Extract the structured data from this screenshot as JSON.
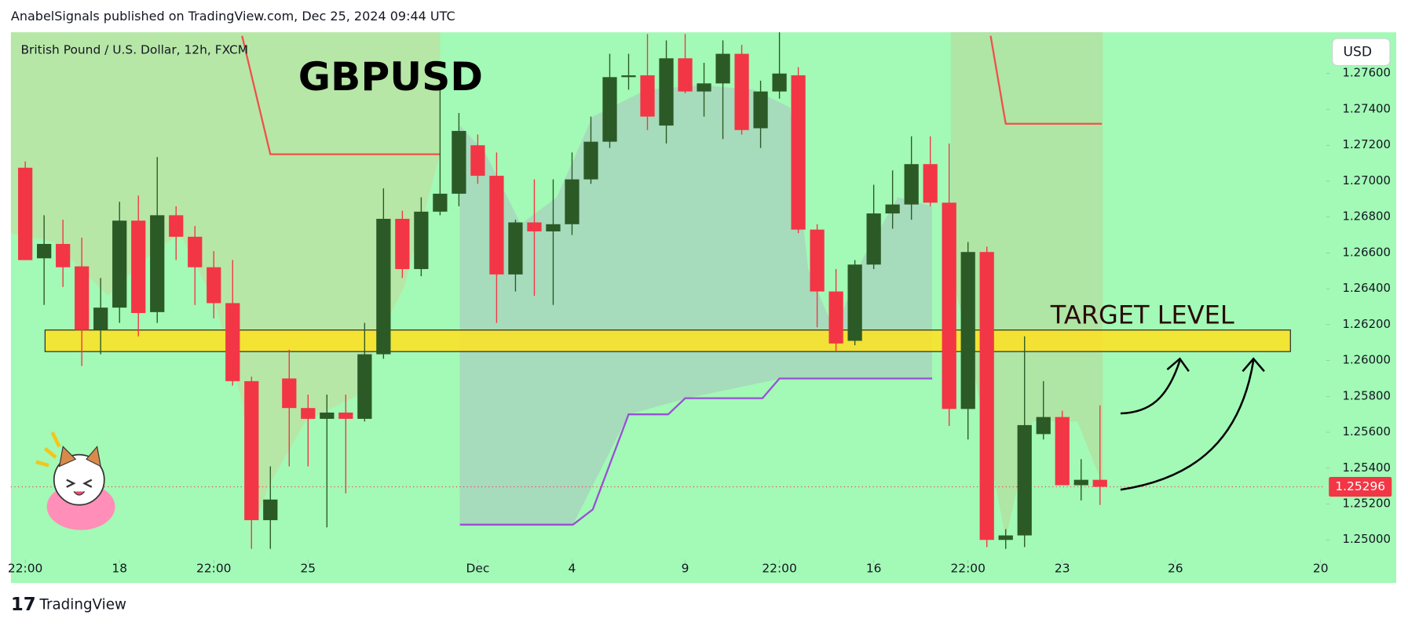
{
  "chart_data": {
    "type": "candlestick",
    "header": "AnabelSignals published on TradingView.com, Dec 25, 2024 09:44 UTC",
    "legend_text": "British Pound / U.S. Dollar, 12h, FXCM",
    "title": "GBPUSD",
    "annotation": "TARGET LEVEL",
    "currency": "USD",
    "footer": "TradingView",
    "up_color": "#2b5a26",
    "down_color": "#f23645",
    "open": [
      1.27075,
      1.2657,
      1.2665,
      1.26525,
      1.2617,
      1.26295,
      1.2678,
      1.2627,
      1.2681,
      1.2669,
      1.2652,
      1.2632,
      1.25885,
      1.2511,
      1.259,
      1.25735,
      1.25675,
      1.2571,
      1.25675,
      1.26035,
      1.2679,
      1.2651,
      1.2683,
      1.2693,
      1.272,
      1.2703,
      1.2648,
      1.2677,
      1.2672,
      1.2676,
      1.2701,
      1.2722,
      1.2758,
      1.2759,
      1.2731,
      1.27685,
      1.275,
      1.27545,
      1.2771,
      1.27295,
      1.275,
      1.2759,
      1.2673,
      1.26385,
      1.2611,
      1.26535,
      1.2682,
      1.2687,
      1.27095,
      1.2688,
      1.2573,
      1.26605,
      1.25,
      1.25025,
      1.2559,
      1.25685,
      1.25305,
      1.25335
    ],
    "high": [
      1.2711,
      1.2681,
      1.26785,
      1.26685,
      1.2646,
      1.26885,
      1.2692,
      1.27135,
      1.2686,
      1.2675,
      1.2661,
      1.2656,
      1.2591,
      1.2541,
      1.2606,
      1.2581,
      1.2581,
      1.2581,
      1.2621,
      1.2696,
      1.26835,
      1.2691,
      1.2751,
      1.2738,
      1.2726,
      1.2716,
      1.26785,
      1.2701,
      1.2701,
      1.2716,
      1.2736,
      1.2771,
      1.2771,
      1.2782,
      1.27785,
      1.2782,
      1.2766,
      1.27785,
      1.2776,
      1.2756,
      1.2783,
      1.27635,
      1.2676,
      1.2651,
      1.2656,
      1.2698,
      1.2706,
      1.2725,
      1.2725,
      1.2721,
      1.2666,
      1.26635,
      1.2506,
      1.26135,
      1.25885,
      1.2572,
      1.2545,
      1.2575
    ],
    "low": [
      1.2656,
      1.2631,
      1.2641,
      1.2597,
      1.26035,
      1.2621,
      1.26135,
      1.2621,
      1.2656,
      1.2631,
      1.26235,
      1.2586,
      1.2495,
      1.2495,
      1.2541,
      1.2541,
      1.2507,
      1.2526,
      1.2566,
      1.2601,
      1.2646,
      1.2647,
      1.2681,
      1.2686,
      1.26985,
      1.2621,
      1.26385,
      1.2636,
      1.2631,
      1.267,
      1.26985,
      1.27185,
      1.2751,
      1.27285,
      1.2721,
      1.2749,
      1.2736,
      1.27235,
      1.2726,
      1.27185,
      1.2746,
      1.2671,
      1.26185,
      1.2605,
      1.26085,
      1.2651,
      1.26735,
      1.26785,
      1.2686,
      1.25635,
      1.2556,
      1.2496,
      1.2495,
      1.2496,
      1.2556,
      1.25305,
      1.2522,
      1.25195
    ],
    "close": [
      1.2656,
      1.2665,
      1.2652,
      1.2617,
      1.26295,
      1.2678,
      1.26265,
      1.2681,
      1.2669,
      1.2652,
      1.2632,
      1.25885,
      1.2511,
      1.25225,
      1.25735,
      1.25675,
      1.2571,
      1.25675,
      1.26035,
      1.2679,
      1.2651,
      1.2683,
      1.2693,
      1.2728,
      1.2703,
      1.2648,
      1.2677,
      1.2672,
      1.2676,
      1.2701,
      1.2722,
      1.2758,
      1.2759,
      1.2736,
      1.27685,
      1.275,
      1.27545,
      1.2771,
      1.27285,
      1.275,
      1.276,
      1.2673,
      1.26385,
      1.26095,
      1.26535,
      1.2682,
      1.2687,
      1.27095,
      1.2688,
      1.2573,
      1.26605,
      1.25,
      1.25025,
      1.2564,
      1.25685,
      1.25305,
      1.25335,
      1.25296
    ],
    "last_price": 1.25296,
    "last_price_color": "#f23645",
    "target_zone": {
      "low": 1.2605,
      "high": 1.2617,
      "from": 1.05,
      "to": 67.1,
      "color": "#ffe21f"
    },
    "indicator_lines": [
      {
        "color": "#f0504a",
        "points": [
          [
            11.5,
            1.2781
          ],
          [
            13,
            1.2715
          ],
          [
            22,
            1.2715
          ]
        ]
      },
      {
        "color": "#f0504a",
        "points": [
          [
            51.2,
            1.2781
          ],
          [
            52,
            1.2732
          ],
          [
            57.1,
            1.2732
          ]
        ]
      },
      {
        "color": "#9b4fd6",
        "points": [
          [
            23.05,
            1.25085
          ],
          [
            29.05,
            1.25085
          ],
          [
            30.1,
            1.2517
          ],
          [
            32,
            1.257
          ],
          [
            34.1,
            1.257
          ],
          [
            35,
            1.2579
          ],
          [
            39.1,
            1.2579
          ],
          [
            40,
            1.259
          ],
          [
            48.1,
            1.259
          ]
        ]
      }
    ],
    "xlim": [
      -0.76,
      68.9
    ],
    "ylim": [
      1.2491,
      1.2783
    ],
    "xticks": [
      {
        "value": 0,
        "label": "22:00"
      },
      {
        "value": 5,
        "label": "18"
      },
      {
        "value": 10,
        "label": "22:00"
      },
      {
        "value": 15,
        "label": "25"
      },
      {
        "value": 24,
        "label": "Dec"
      },
      {
        "value": 29,
        "label": "4"
      },
      {
        "value": 35,
        "label": "9"
      },
      {
        "value": 40,
        "label": "22:00"
      },
      {
        "value": 45,
        "label": "16"
      },
      {
        "value": 50,
        "label": "22:00"
      },
      {
        "value": 55,
        "label": "23"
      },
      {
        "value": 61,
        "label": "26"
      },
      {
        "value": 68.7,
        "label": "20"
      }
    ],
    "yticks": [
      {
        "value": 1.25,
        "label": "1.25000"
      },
      {
        "value": 1.252,
        "label": "1.25200"
      },
      {
        "value": 1.254,
        "label": "1.25400"
      },
      {
        "value": 1.256,
        "label": "1.25600"
      },
      {
        "value": 1.258,
        "label": "1.25800"
      },
      {
        "value": 1.26,
        "label": "1.26000"
      },
      {
        "value": 1.262,
        "label": "1.26200"
      },
      {
        "value": 1.264,
        "label": "1.26400"
      },
      {
        "value": 1.266,
        "label": "1.26600"
      },
      {
        "value": 1.268,
        "label": "1.26800"
      },
      {
        "value": 1.27,
        "label": "1.27000"
      },
      {
        "value": 1.272,
        "label": "1.27200"
      },
      {
        "value": 1.274,
        "label": "1.27400"
      },
      {
        "value": 1.276,
        "label": "1.27600"
      }
    ]
  }
}
